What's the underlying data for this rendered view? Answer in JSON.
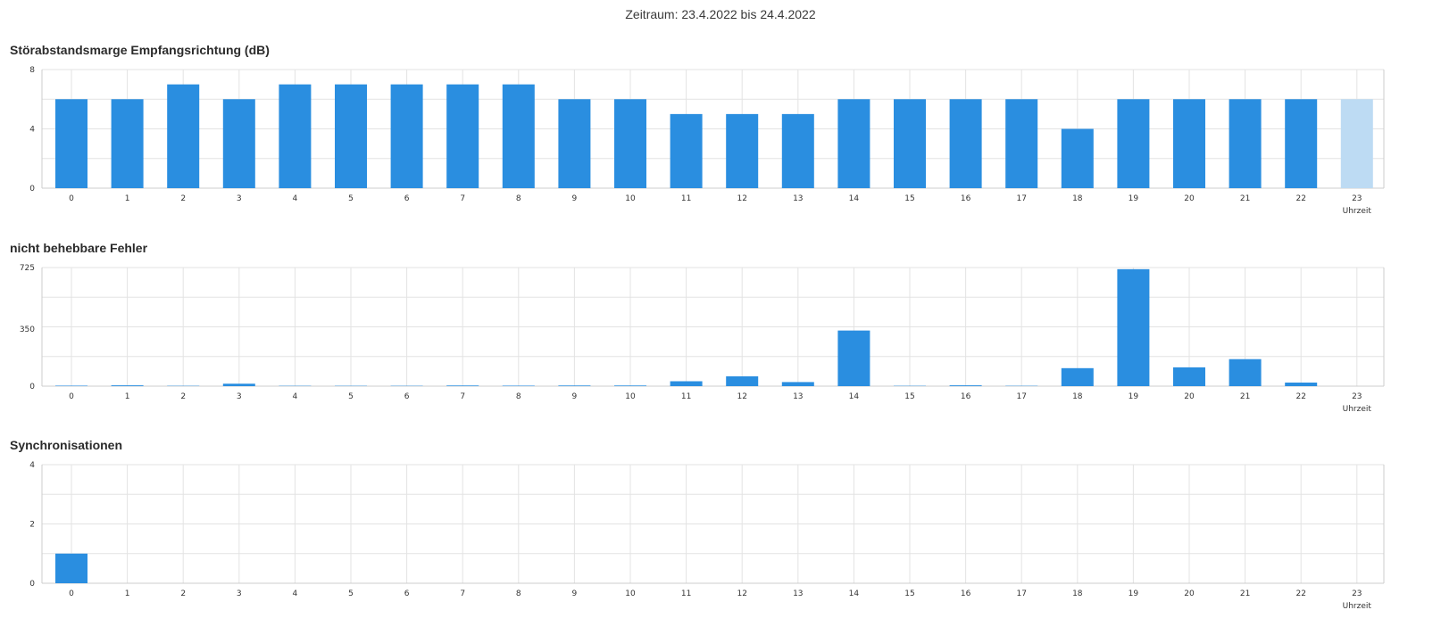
{
  "header": {
    "period": "Zeitraum: 23.4.2022 bis 24.4.2022"
  },
  "colors": {
    "bar": "#2a8ee0",
    "bar_light": "#bddbf3",
    "grid": "#e3e3e3",
    "axis": "#cccccc"
  },
  "chart_data": [
    {
      "type": "bar",
      "title": "Störabstandsmarge Empfangsrichtung (dB)",
      "xlabel": "Uhrzeit",
      "ylabel": "",
      "categories": [
        "0",
        "1",
        "2",
        "3",
        "4",
        "5",
        "6",
        "7",
        "8",
        "9",
        "10",
        "11",
        "12",
        "13",
        "14",
        "15",
        "16",
        "17",
        "18",
        "19",
        "20",
        "21",
        "22",
        "23"
      ],
      "values": [
        6,
        6,
        7,
        6,
        7,
        7,
        7,
        7,
        7,
        6,
        6,
        5,
        5,
        5,
        6,
        6,
        6,
        6,
        4,
        6,
        6,
        6,
        6,
        6
      ],
      "highlight_last": true,
      "ylim": [
        0,
        8
      ],
      "yticks": [
        0,
        4,
        8
      ],
      "grid": true
    },
    {
      "type": "bar",
      "title": "nicht behebbare Fehler",
      "xlabel": "Uhrzeit",
      "ylabel": "",
      "categories": [
        "0",
        "1",
        "2",
        "3",
        "4",
        "5",
        "6",
        "7",
        "8",
        "9",
        "10",
        "11",
        "12",
        "13",
        "14",
        "15",
        "16",
        "17",
        "18",
        "19",
        "20",
        "21",
        "22",
        "23"
      ],
      "values": [
        3,
        5,
        2,
        15,
        2,
        2,
        2,
        4,
        3,
        4,
        4,
        30,
        60,
        25,
        340,
        2,
        5,
        2,
        110,
        715,
        115,
        165,
        22,
        0
      ],
      "highlight_last": false,
      "ylim": [
        0,
        725
      ],
      "yticks": [
        0,
        350,
        725
      ],
      "grid": true
    },
    {
      "type": "bar",
      "title": "Synchronisationen",
      "xlabel": "Uhrzeit",
      "ylabel": "",
      "categories": [
        "0",
        "1",
        "2",
        "3",
        "4",
        "5",
        "6",
        "7",
        "8",
        "9",
        "10",
        "11",
        "12",
        "13",
        "14",
        "15",
        "16",
        "17",
        "18",
        "19",
        "20",
        "21",
        "22",
        "23"
      ],
      "values": [
        1,
        0,
        0,
        0,
        0,
        0,
        0,
        0,
        0,
        0,
        0,
        0,
        0,
        0,
        0,
        0,
        0,
        0,
        0,
        0,
        0,
        0,
        0,
        0
      ],
      "highlight_last": false,
      "ylim": [
        0,
        4
      ],
      "yticks": [
        0,
        2,
        4
      ],
      "grid": true
    }
  ]
}
